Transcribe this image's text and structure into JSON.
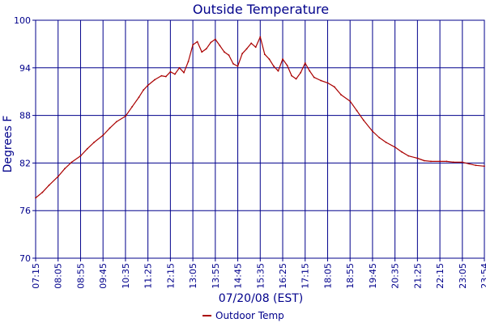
{
  "chart_data": {
    "type": "line",
    "title": "Outside Temperature",
    "xlabel": "07/20/08 (EST)",
    "ylabel": "Degrees F",
    "ylim": [
      70,
      100
    ],
    "yticks": [
      "70",
      "76",
      "82",
      "88",
      "94",
      "100"
    ],
    "xticks": [
      "07:15",
      "08:05",
      "08:55",
      "09:45",
      "10:35",
      "11:25",
      "12:15",
      "13:05",
      "13:55",
      "14:45",
      "15:35",
      "16:25",
      "17:15",
      "18:05",
      "18:55",
      "19:45",
      "20:35",
      "21:25",
      "22:15",
      "23:05",
      "23:54"
    ],
    "grid": true,
    "legend_position": "bottom-center",
    "series": [
      {
        "name": "Outdoor Temp",
        "color": "#aa0000",
        "x": [
          "07:15",
          "07:30",
          "07:45",
          "08:05",
          "08:20",
          "08:35",
          "08:55",
          "09:10",
          "09:25",
          "09:45",
          "10:00",
          "10:15",
          "10:35",
          "10:50",
          "11:05",
          "11:15",
          "11:25",
          "11:40",
          "11:55",
          "12:05",
          "12:15",
          "12:25",
          "12:35",
          "12:45",
          "12:55",
          "13:05",
          "13:15",
          "13:25",
          "13:35",
          "13:45",
          "13:55",
          "14:05",
          "14:15",
          "14:25",
          "14:35",
          "14:45",
          "14:55",
          "15:05",
          "15:15",
          "15:25",
          "15:35",
          "15:45",
          "15:55",
          "16:05",
          "16:15",
          "16:25",
          "16:35",
          "16:45",
          "16:55",
          "17:05",
          "17:15",
          "17:25",
          "17:35",
          "17:50",
          "18:05",
          "18:20",
          "18:35",
          "18:55",
          "19:10",
          "19:25",
          "19:45",
          "20:00",
          "20:15",
          "20:35",
          "20:50",
          "21:05",
          "21:25",
          "21:40",
          "21:55",
          "22:15",
          "22:30",
          "22:45",
          "23:05",
          "23:20",
          "23:35",
          "23:54"
        ],
        "values": [
          77.6,
          78.3,
          79.2,
          80.3,
          81.3,
          82.1,
          82.9,
          83.8,
          84.6,
          85.5,
          86.4,
          87.2,
          87.9,
          89.1,
          90.3,
          91.2,
          91.8,
          92.5,
          93.0,
          92.9,
          93.5,
          93.2,
          94.0,
          93.4,
          94.8,
          96.9,
          97.3,
          96.0,
          96.4,
          97.2,
          97.6,
          96.8,
          96.0,
          95.6,
          94.5,
          94.2,
          95.8,
          96.4,
          97.1,
          96.6,
          97.9,
          95.7,
          95.1,
          94.2,
          93.6,
          95.1,
          94.3,
          93.0,
          92.6,
          93.4,
          94.6,
          93.6,
          92.8,
          92.4,
          92.1,
          91.6,
          90.6,
          89.8,
          88.6,
          87.4,
          86.0,
          85.2,
          84.6,
          84.0,
          83.4,
          82.9,
          82.6,
          82.3,
          82.2,
          82.2,
          82.2,
          82.1,
          82.1,
          81.9,
          81.7,
          81.6
        ]
      }
    ]
  }
}
